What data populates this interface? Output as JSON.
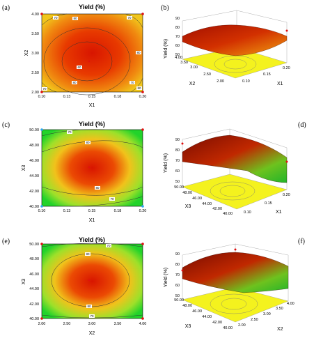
{
  "chart_data": [
    {
      "panel": "(a)",
      "type": "contour",
      "title": "Yield (%)",
      "xlabel": "X1",
      "ylabel": "X2",
      "xticks": [
        "0.10",
        "0.13",
        "0.15",
        "0.18",
        "0.20"
      ],
      "yticks": [
        "2.00",
        "2.50",
        "3.00",
        "3.50",
        "4.00"
      ],
      "xlim": [
        0.1,
        0.2
      ],
      "ylim": [
        2.0,
        4.0
      ],
      "optimum": [
        0.145,
        2.9
      ],
      "contour_labels": [
        "60",
        "70",
        "80",
        "70",
        "80",
        "70",
        "80",
        "70",
        "80"
      ]
    },
    {
      "panel": "(b)",
      "type": "surface",
      "zlabel": "Yield (%)",
      "xlabel": "X1",
      "ylabel": "X2",
      "zticks": [
        "50",
        "60",
        "70",
        "80",
        "90"
      ],
      "xticks": [
        "0.10",
        "0.15",
        "0.20"
      ],
      "yticks": [
        "2.00",
        "2.50",
        "3.00",
        "3.50",
        "4.00"
      ]
    },
    {
      "panel": "(c)",
      "type": "contour",
      "title": "Yield (%)",
      "xlabel": "X1",
      "ylabel": "X3",
      "xticks": [
        "0.10",
        "0.13",
        "0.15",
        "0.18",
        "0.20"
      ],
      "yticks": [
        "40.00",
        "42.00",
        "44.00",
        "46.00",
        "48.00",
        "50.00"
      ],
      "xlim": [
        0.1,
        0.2
      ],
      "ylim": [
        40.0,
        50.0
      ],
      "optimum": [
        0.15,
        45.2
      ],
      "contour_labels": [
        "70",
        "80",
        "80",
        "70"
      ]
    },
    {
      "panel": "(d)",
      "type": "surface",
      "zlabel": "Yield (%)",
      "xlabel": "X1",
      "ylabel": "X3",
      "zticks": [
        "50",
        "60",
        "70",
        "80",
        "90"
      ],
      "xticks": [
        "0.10",
        "0.15",
        "0.20"
      ],
      "yticks": [
        "40.00",
        "42.00",
        "44.00",
        "46.00",
        "48.00",
        "50.00"
      ]
    },
    {
      "panel": "(e)",
      "type": "contour",
      "title": "Yield (%)",
      "xlabel": "X2",
      "ylabel": "X3",
      "xticks": [
        "2.00",
        "2.50",
        "3.00",
        "3.50",
        "4.00"
      ],
      "yticks": [
        "40.00",
        "42.00",
        "44.00",
        "46.00",
        "48.00",
        "50.00"
      ],
      "xlim": [
        2.0,
        4.0
      ],
      "ylim": [
        40.0,
        50.0
      ],
      "optimum": [
        2.95,
        45.3
      ],
      "contour_labels": [
        "70",
        "80",
        "80",
        "70"
      ]
    },
    {
      "panel": "(f)",
      "type": "surface",
      "zlabel": "Yield (%)",
      "xlabel": "X2",
      "ylabel": "X3",
      "zticks": [
        "50",
        "60",
        "70",
        "80",
        "90"
      ],
      "xticks": [
        "2.00",
        "2.50",
        "3.00",
        "3.50",
        "4.00"
      ],
      "yticks": [
        "40.00",
        "42.00",
        "44.00",
        "46.00",
        "48.00",
        "50.00"
      ]
    }
  ],
  "colors": {
    "high": "#d41a00",
    "mid": "#f3d51d",
    "low": "#22d32a",
    "plane": "#f4f21e",
    "contour_line": "#444444"
  }
}
